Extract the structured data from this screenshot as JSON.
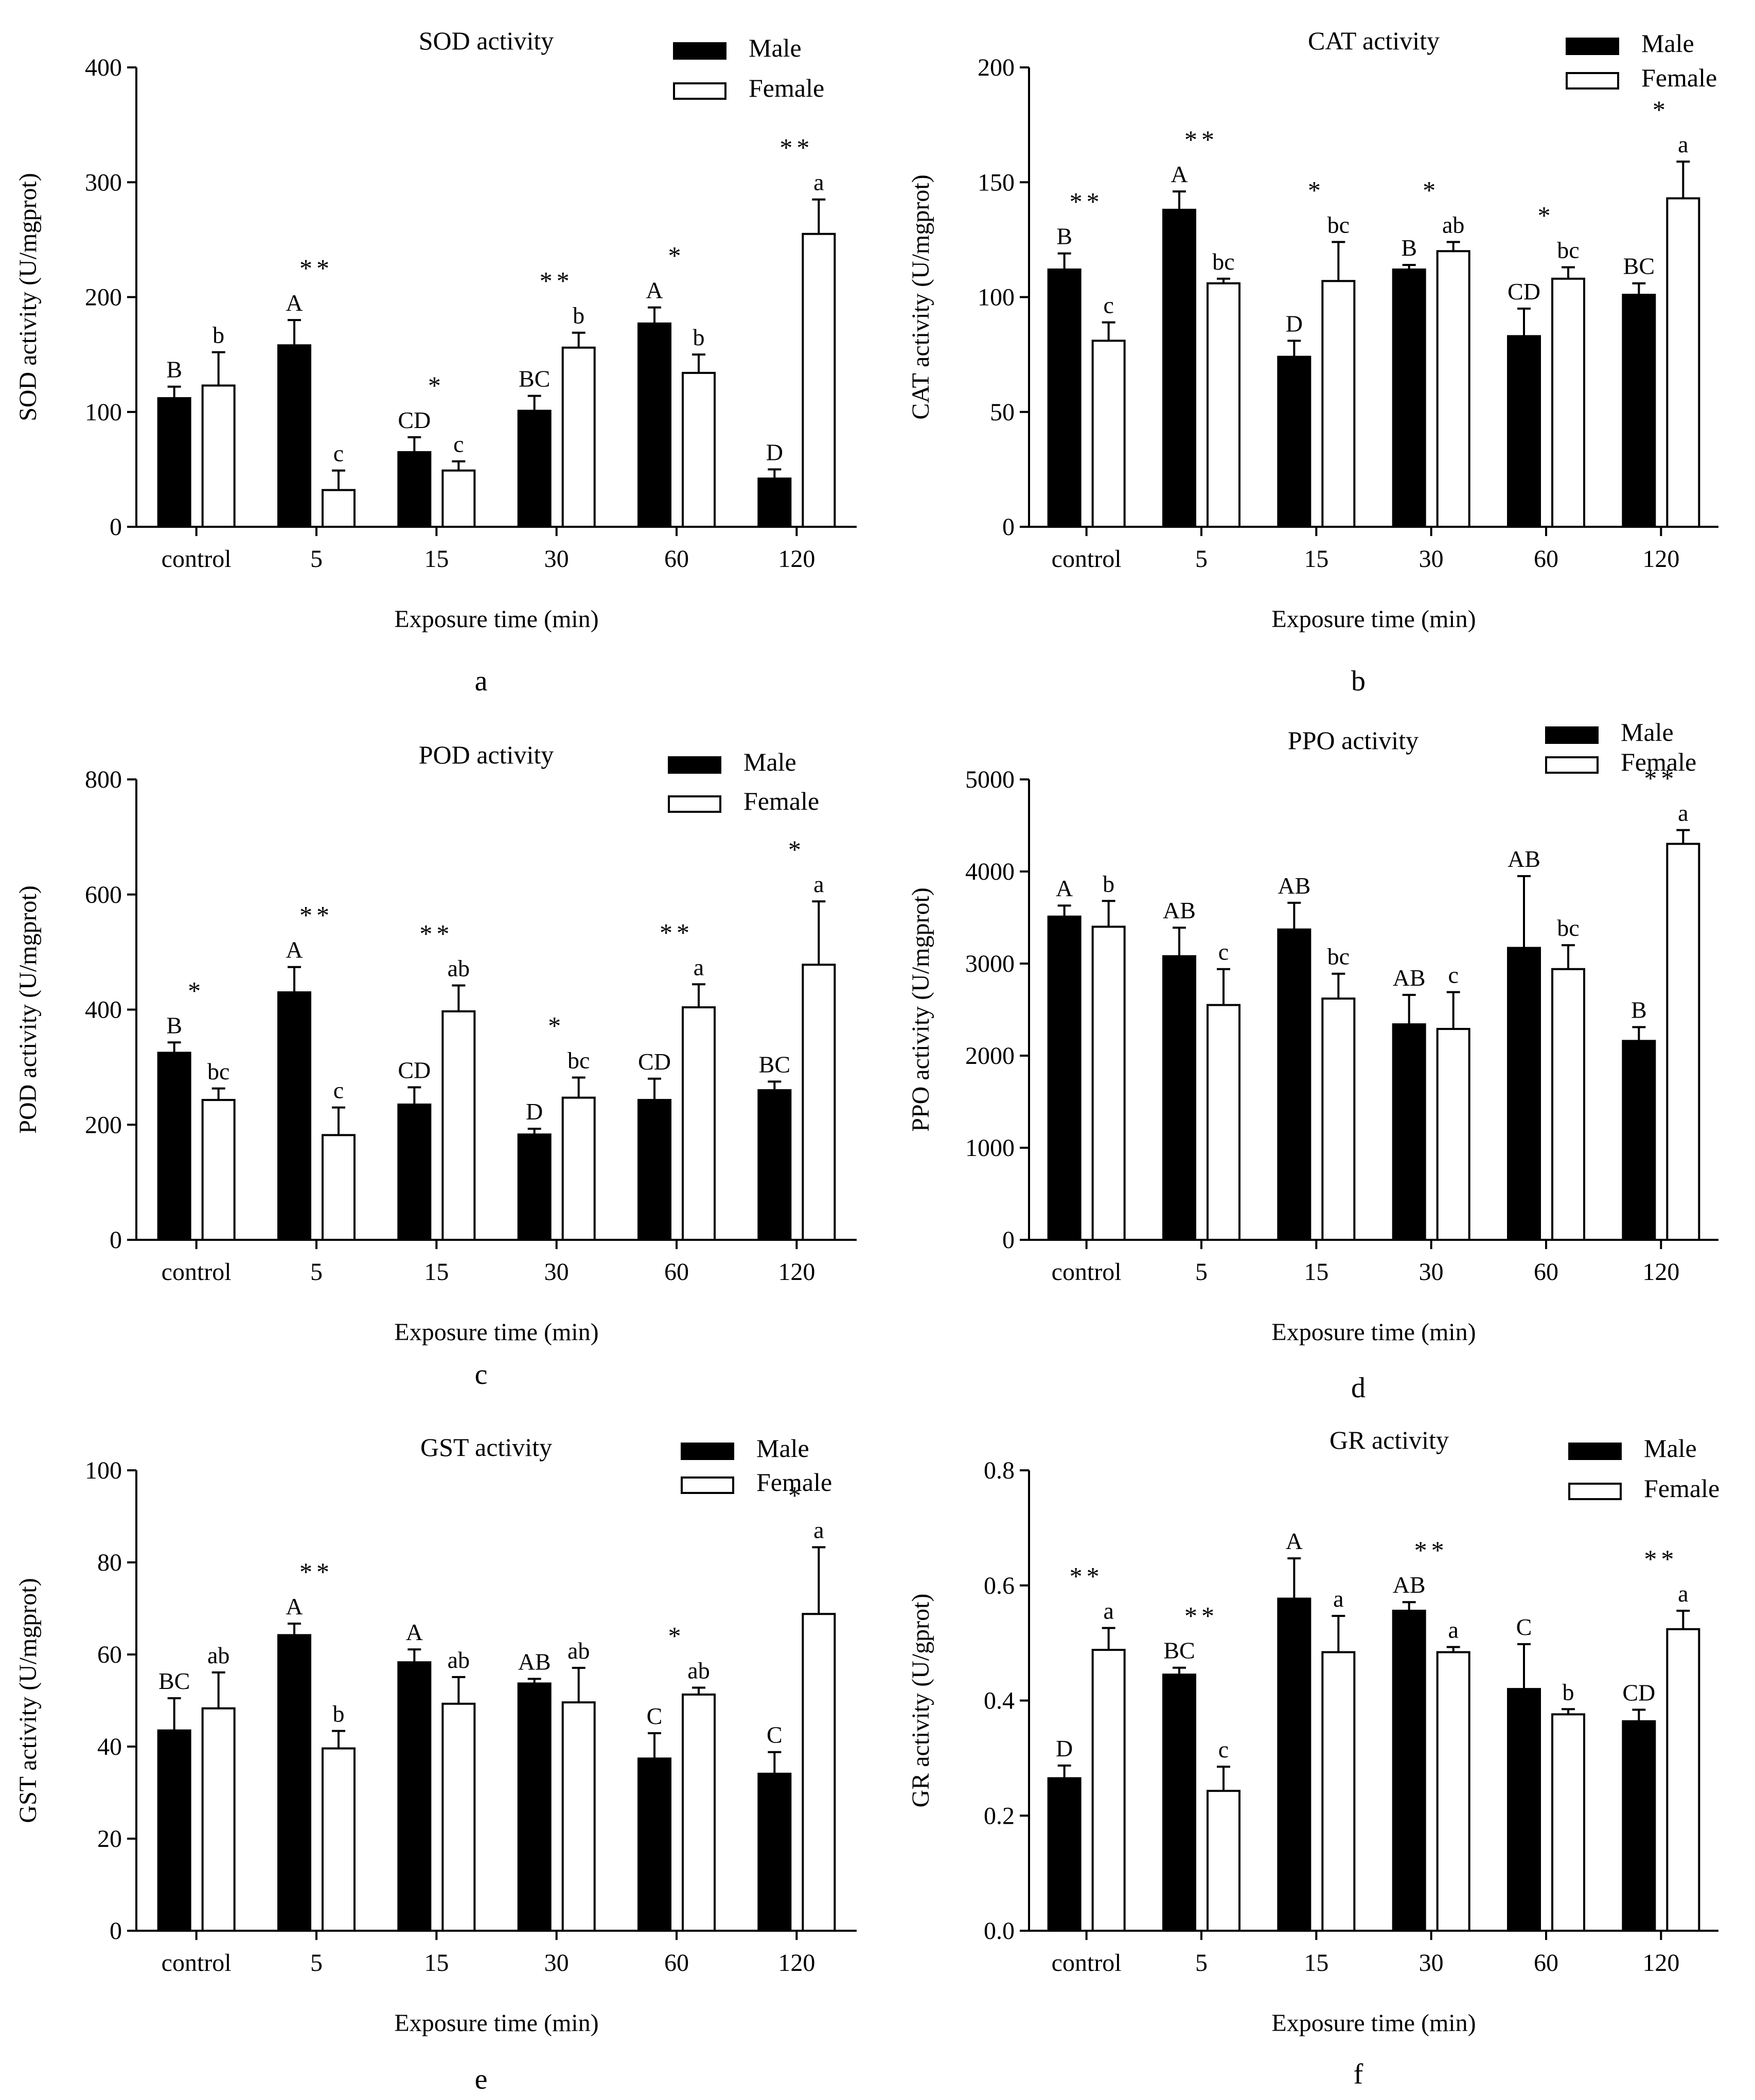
{
  "chart_data": [
    {
      "type": "bar",
      "panel_label": "a",
      "title": "SOD activity",
      "xlabel": "Exposure time (min)",
      "ylabel": "SOD activity  (U/mgprot)",
      "categories": [
        "control",
        "5",
        "15",
        "30",
        "60",
        "120"
      ],
      "ylim": [
        0,
        400
      ],
      "yticks": [
        "0",
        "100",
        "200",
        "300",
        "400"
      ],
      "legend": "top-right",
      "series": [
        {
          "name": "Male",
          "color": "#000000",
          "values": [
            112,
            158,
            65,
            101,
            177,
            42
          ],
          "errors": [
            10,
            22,
            13,
            13,
            14,
            8
          ],
          "letters": [
            "B",
            "A",
            "CD",
            "BC",
            "A",
            "D"
          ]
        },
        {
          "name": "Female",
          "color": "#ffffff",
          "values": [
            123,
            32,
            49,
            156,
            134,
            255
          ],
          "errors": [
            29,
            17,
            8,
            13,
            16,
            30
          ],
          "letters": [
            "b",
            "c",
            "c",
            "b",
            "b",
            "a"
          ]
        }
      ],
      "significance": [
        "",
        "**",
        "*",
        "**",
        "*",
        "**"
      ]
    },
    {
      "type": "bar",
      "panel_label": "b",
      "title": "CAT activity",
      "xlabel": "Exposure time (min)",
      "ylabel": "CAT activity (U/mgprot)",
      "categories": [
        "control",
        "5",
        "15",
        "30",
        "60",
        "120"
      ],
      "ylim": [
        0,
        200
      ],
      "yticks": [
        "0",
        "50",
        "100",
        "150",
        "200"
      ],
      "legend": "top-right",
      "series": [
        {
          "name": "Male",
          "color": "#000000",
          "values": [
            112,
            138,
            74,
            112,
            83,
            101
          ],
          "errors": [
            7,
            8,
            7,
            2,
            12,
            5
          ],
          "letters": [
            "B",
            "A",
            "D",
            "B",
            "CD",
            "BC"
          ]
        },
        {
          "name": "Female",
          "color": "#ffffff",
          "values": [
            81,
            106,
            107,
            120,
            108,
            143
          ],
          "errors": [
            8,
            2,
            17,
            4,
            5,
            16
          ],
          "letters": [
            "c",
            "bc",
            "bc",
            "ab",
            "bc",
            "a"
          ]
        }
      ],
      "significance": [
        "**",
        "**",
        "*",
        "*",
        "*",
        "*"
      ]
    },
    {
      "type": "bar",
      "panel_label": "c",
      "title": "POD activity",
      "xlabel": "Exposure time (min)",
      "ylabel": "POD activity (U/mgprot)",
      "categories": [
        "control",
        "5",
        "15",
        "30",
        "60",
        "120"
      ],
      "ylim": [
        0,
        800
      ],
      "yticks": [
        "0",
        "200",
        "400",
        "600",
        "800"
      ],
      "legend": "top-right",
      "series": [
        {
          "name": "Male",
          "color": "#000000",
          "values": [
            325,
            430,
            235,
            183,
            243,
            260
          ],
          "errors": [
            18,
            44,
            30,
            10,
            37,
            15
          ],
          "letters": [
            "B",
            "A",
            "CD",
            "D",
            "CD",
            "BC"
          ]
        },
        {
          "name": "Female",
          "color": "#ffffff",
          "values": [
            243,
            182,
            397,
            247,
            404,
            478
          ],
          "errors": [
            20,
            48,
            45,
            35,
            40,
            110
          ],
          "letters": [
            "bc",
            "c",
            "ab",
            "bc",
            "a",
            "a"
          ]
        }
      ],
      "significance": [
        "*",
        "**",
        "**",
        "*",
        "**",
        "*"
      ]
    },
    {
      "type": "bar",
      "panel_label": "d",
      "title": "PPO activity",
      "xlabel": "Exposure time (min)",
      "ylabel": "PPO activity (U/mgprot)",
      "categories": [
        "control",
        "5",
        "15",
        "30",
        "60",
        "120"
      ],
      "ylim": [
        0,
        5000
      ],
      "yticks": [
        "0",
        "1000",
        "2000",
        "3000",
        "4000",
        "5000"
      ],
      "legend": "top-right",
      "series": [
        {
          "name": "Male",
          "color": "#000000",
          "values": [
            3510,
            3080,
            3370,
            2340,
            3170,
            2160
          ],
          "errors": [
            120,
            310,
            290,
            320,
            780,
            150
          ],
          "letters": [
            "A",
            "AB",
            "AB",
            "AB",
            "AB",
            "B"
          ]
        },
        {
          "name": "Female",
          "color": "#ffffff",
          "values": [
            3400,
            2550,
            2620,
            2290,
            2940,
            4300
          ],
          "errors": [
            280,
            390,
            270,
            400,
            260,
            150
          ],
          "letters": [
            "b",
            "c",
            "bc",
            "c",
            "bc",
            "a"
          ]
        }
      ],
      "significance": [
        "",
        "",
        "",
        "",
        "",
        "**"
      ]
    },
    {
      "type": "bar",
      "panel_label": "e",
      "title": "GST activity",
      "xlabel": "Exposure time (min)",
      "ylabel": "GST activity (U/mgprot)",
      "categories": [
        "control",
        "5",
        "15",
        "30",
        "60",
        "120"
      ],
      "ylim": [
        0,
        100
      ],
      "yticks": [
        "0",
        "20",
        "40",
        "60",
        "80",
        "100"
      ],
      "legend": "top-right",
      "series": [
        {
          "name": "Male",
          "color": "#000000",
          "values": [
            43.5,
            64.2,
            58.3,
            53.7,
            37.4,
            34.1
          ],
          "errors": [
            7,
            2.5,
            2.8,
            1,
            5.5,
            4.7
          ],
          "letters": [
            "BC",
            "A",
            "A",
            "AB",
            "C",
            "C"
          ]
        },
        {
          "name": "Female",
          "color": "#ffffff",
          "values": [
            48.3,
            39.6,
            49.3,
            49.6,
            51.3,
            68.8
          ],
          "errors": [
            7.8,
            3.8,
            5.8,
            7.5,
            1.5,
            14.5
          ],
          "letters": [
            "ab",
            "b",
            "ab",
            "ab",
            "ab",
            "a"
          ]
        }
      ],
      "significance": [
        "",
        "**",
        "",
        "",
        "*",
        "*"
      ]
    },
    {
      "type": "bar",
      "panel_label": "f",
      "title": "GR activity",
      "xlabel": "Exposure time (min)",
      "ylabel": "GR activity (U/gprot)",
      "categories": [
        "control",
        "5",
        "15",
        "30",
        "60",
        "120"
      ],
      "ylim": [
        0,
        0.8
      ],
      "yticks": [
        "0.0",
        "0.2",
        "0.4",
        "0.6",
        "0.8"
      ],
      "legend": "top-right",
      "series": [
        {
          "name": "Male",
          "color": "#000000",
          "values": [
            0.265,
            0.445,
            0.577,
            0.556,
            0.42,
            0.364
          ],
          "errors": [
            0.022,
            0.012,
            0.07,
            0.015,
            0.078,
            0.02
          ],
          "letters": [
            "D",
            "BC",
            "A",
            "AB",
            "C",
            "CD"
          ]
        },
        {
          "name": "Female",
          "color": "#ffffff",
          "values": [
            0.488,
            0.243,
            0.484,
            0.484,
            0.376,
            0.524
          ],
          "errors": [
            0.038,
            0.042,
            0.063,
            0.009,
            0.009,
            0.032
          ],
          "letters": [
            "a",
            "c",
            "a",
            "a",
            "b",
            "a"
          ]
        }
      ],
      "significance": [
        "**",
        "**",
        "",
        "**",
        "",
        "**"
      ]
    }
  ]
}
